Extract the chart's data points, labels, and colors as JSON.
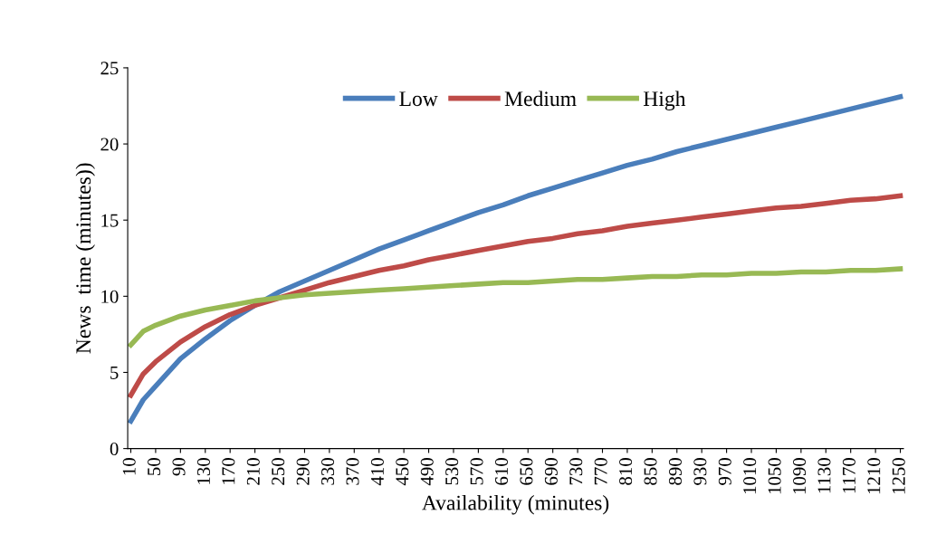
{
  "chart_data": {
    "type": "line",
    "xlabel": "Availability (minutes)",
    "ylabel": "News  time (minutes))",
    "x": [
      10,
      30,
      50,
      90,
      130,
      170,
      210,
      250,
      290,
      330,
      370,
      410,
      450,
      490,
      530,
      570,
      610,
      650,
      690,
      730,
      770,
      810,
      850,
      890,
      930,
      970,
      1010,
      1050,
      1090,
      1130,
      1170,
      1210,
      1250
    ],
    "series": [
      {
        "name": "Low",
        "color": "#4a7ebb",
        "values": [
          1.8,
          3.2,
          4.1,
          5.9,
          7.2,
          8.4,
          9.4,
          10.3,
          11.0,
          11.7,
          12.4,
          13.1,
          13.7,
          14.3,
          14.9,
          15.5,
          16.0,
          16.6,
          17.1,
          17.6,
          18.1,
          18.6,
          19.0,
          19.5,
          19.9,
          20.3,
          20.7,
          21.1,
          21.5,
          21.9,
          22.3,
          22.7,
          23.1
        ]
      },
      {
        "name": "Medium",
        "color": "#be4b48",
        "values": [
          3.5,
          4.9,
          5.7,
          7.0,
          8.0,
          8.8,
          9.4,
          9.9,
          10.4,
          10.9,
          11.3,
          11.7,
          12.0,
          12.4,
          12.7,
          13.0,
          13.3,
          13.6,
          13.8,
          14.1,
          14.3,
          14.6,
          14.8,
          15.0,
          15.2,
          15.4,
          15.6,
          15.8,
          15.9,
          16.1,
          16.3,
          16.4,
          16.6
        ]
      },
      {
        "name": "High",
        "color": "#98b954",
        "values": [
          6.8,
          7.7,
          8.1,
          8.7,
          9.1,
          9.4,
          9.7,
          9.9,
          10.1,
          10.2,
          10.3,
          10.4,
          10.5,
          10.6,
          10.7,
          10.8,
          10.9,
          10.9,
          11.0,
          11.1,
          11.1,
          11.2,
          11.3,
          11.3,
          11.4,
          11.4,
          11.5,
          11.5,
          11.6,
          11.6,
          11.7,
          11.7,
          11.8
        ]
      }
    ],
    "xlim": [
      5,
      1255
    ],
    "xticks": [
      10,
      50,
      90,
      130,
      170,
      210,
      250,
      290,
      330,
      370,
      410,
      450,
      490,
      530,
      570,
      610,
      650,
      690,
      730,
      770,
      810,
      850,
      890,
      930,
      970,
      1010,
      1050,
      1090,
      1130,
      1170,
      1210,
      1250
    ],
    "ylim": [
      0,
      25
    ],
    "yticks": [
      0,
      5,
      10,
      15,
      20,
      25
    ],
    "grid": false,
    "legend": "top",
    "marker": "none",
    "line_style": "solid"
  }
}
